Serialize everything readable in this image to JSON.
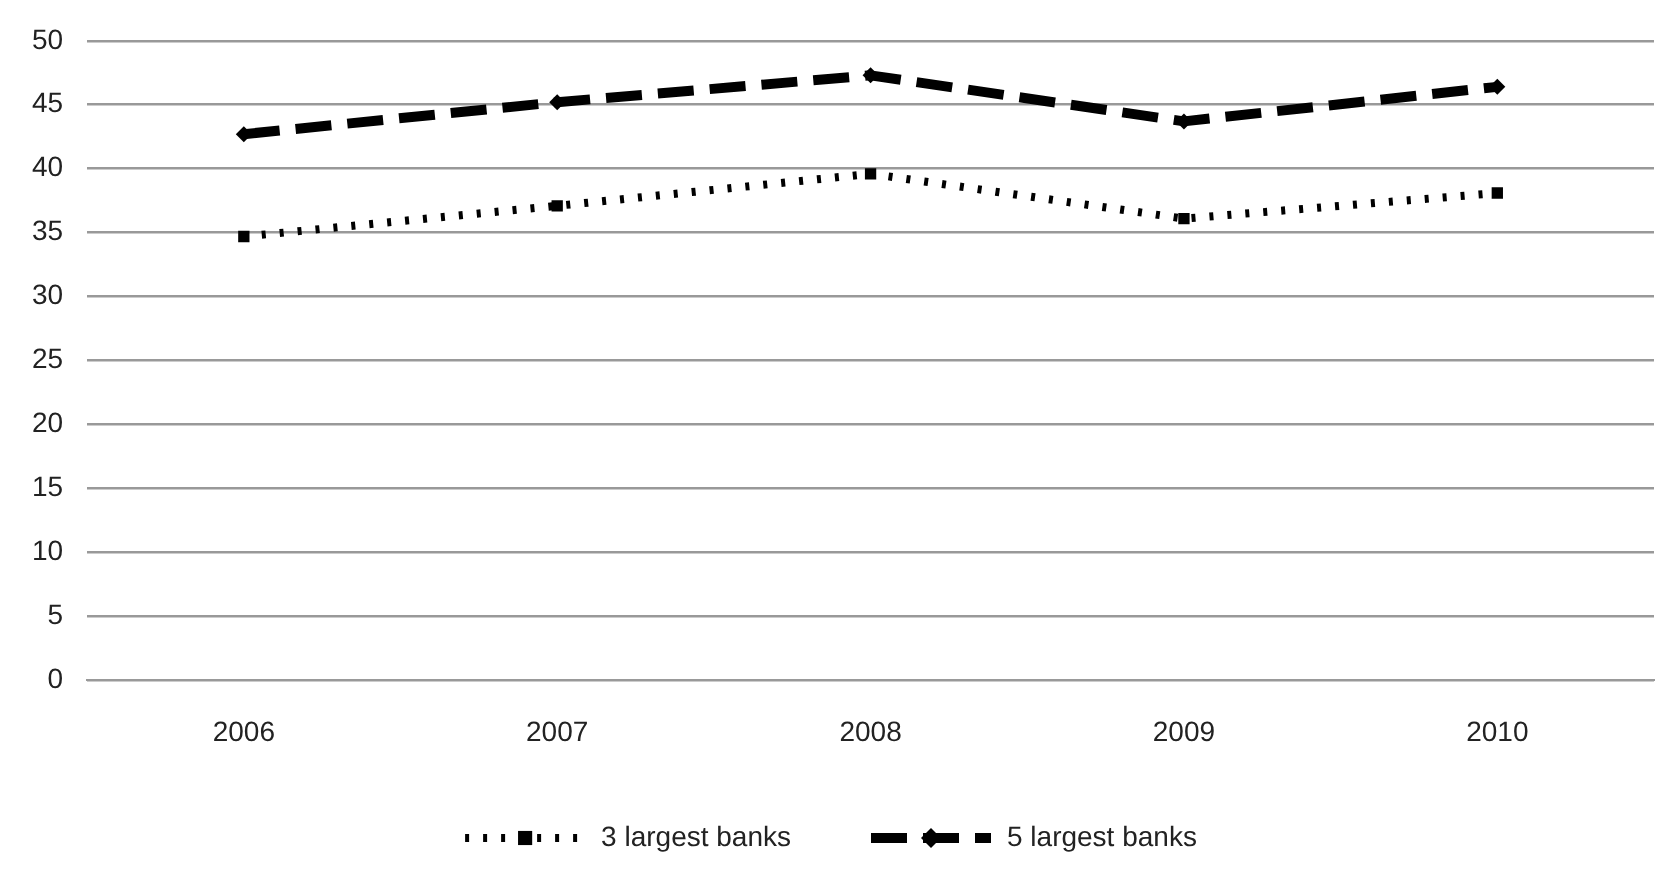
{
  "chart_data": {
    "type": "line",
    "categories": [
      "2006",
      "2007",
      "2008",
      "2009",
      "2010"
    ],
    "series": [
      {
        "name": "3 largest banks",
        "color": "#000000",
        "values": [
          34.7,
          37.1,
          39.6,
          36.1,
          38.1
        ],
        "marker": "square",
        "line_style": "dotted"
      },
      {
        "name": "5 largest banks",
        "color": "#000000",
        "values": [
          42.7,
          45.2,
          47.3,
          43.7,
          46.4
        ],
        "marker": "diamond",
        "line_style": "dashed"
      }
    ],
    "ylim": [
      0,
      50
    ],
    "yticks": [
      0,
      5,
      10,
      15,
      20,
      25,
      30,
      35,
      40,
      45,
      50
    ],
    "grid": "y",
    "legend": "bottom"
  }
}
